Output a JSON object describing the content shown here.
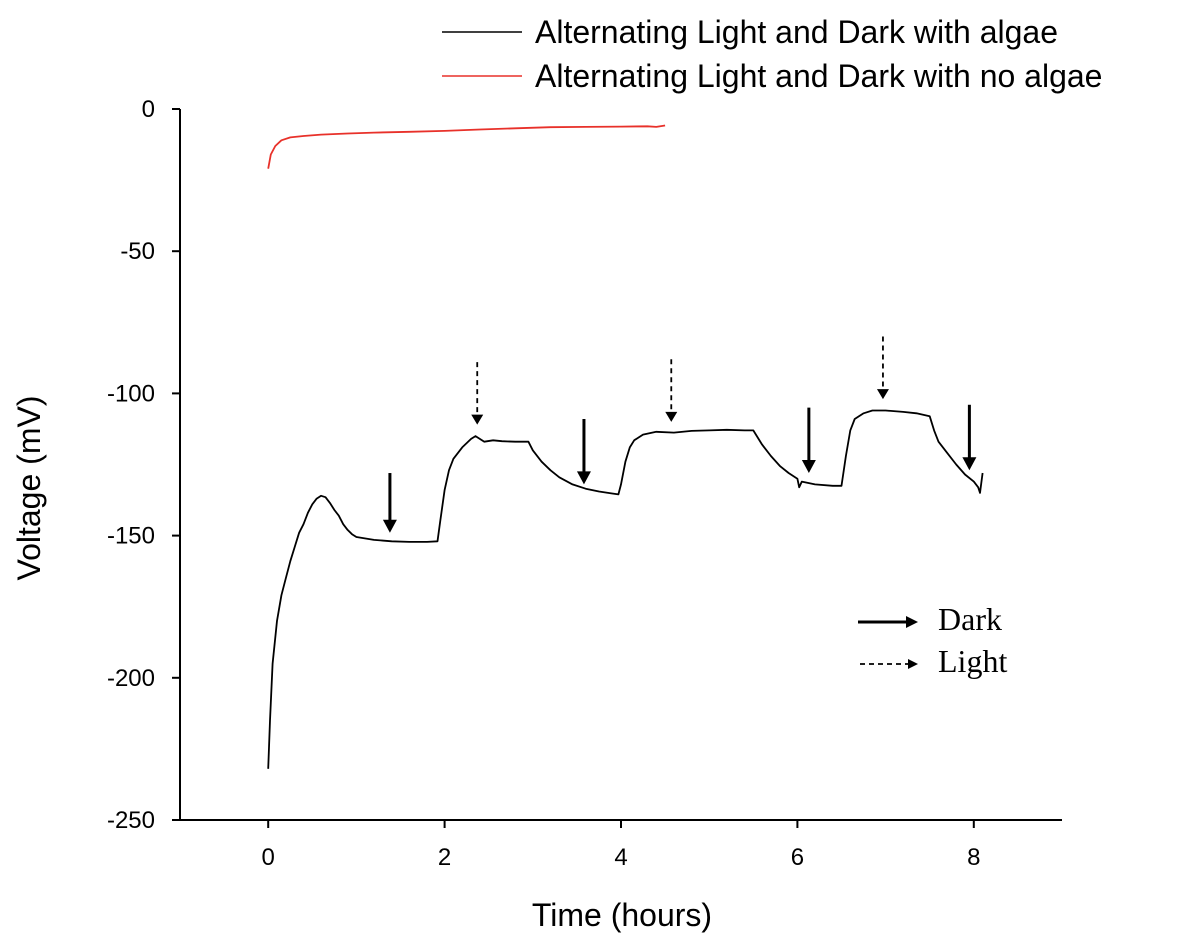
{
  "chart_data": {
    "type": "line",
    "xlabel": "Time (hours)",
    "ylabel": "Voltage (mV)",
    "xlim": [
      -1,
      9
    ],
    "ylim": [
      -250,
      0
    ],
    "xticks": [
      0,
      2,
      4,
      6,
      8
    ],
    "yticks": [
      0,
      -50,
      -100,
      -150,
      -200,
      -250
    ],
    "xtick_labels": [
      "0",
      "2",
      "4",
      "6",
      "8"
    ],
    "ytick_labels": [
      "0",
      "-50",
      "-100",
      "-150",
      "-200",
      "-250"
    ],
    "grid": false,
    "legend_position": "top-right",
    "series": [
      {
        "name": "Alternating Light and Dark with algae",
        "color": "#000000",
        "points": [
          [
            0.0,
            -232
          ],
          [
            0.02,
            -215
          ],
          [
            0.05,
            -195
          ],
          [
            0.1,
            -180
          ],
          [
            0.15,
            -171
          ],
          [
            0.2,
            -165
          ],
          [
            0.25,
            -159
          ],
          [
            0.3,
            -154
          ],
          [
            0.35,
            -149
          ],
          [
            0.4,
            -146
          ],
          [
            0.45,
            -142
          ],
          [
            0.5,
            -139
          ],
          [
            0.55,
            -137
          ],
          [
            0.6,
            -136
          ],
          [
            0.65,
            -136.5
          ],
          [
            0.7,
            -138.5
          ],
          [
            0.75,
            -141
          ],
          [
            0.8,
            -143
          ],
          [
            0.85,
            -146
          ],
          [
            0.9,
            -148
          ],
          [
            0.95,
            -149.5
          ],
          [
            1.0,
            -150.5
          ],
          [
            1.2,
            -151.5
          ],
          [
            1.4,
            -152
          ],
          [
            1.6,
            -152.2
          ],
          [
            1.8,
            -152.2
          ],
          [
            1.92,
            -152
          ],
          [
            1.95,
            -145
          ],
          [
            2.0,
            -134
          ],
          [
            2.05,
            -127
          ],
          [
            2.1,
            -123
          ],
          [
            2.2,
            -119
          ],
          [
            2.3,
            -116
          ],
          [
            2.35,
            -115
          ],
          [
            2.45,
            -117
          ],
          [
            2.55,
            -116.5
          ],
          [
            2.65,
            -116.8
          ],
          [
            2.8,
            -117
          ],
          [
            2.95,
            -117
          ],
          [
            3.0,
            -120
          ],
          [
            3.1,
            -124
          ],
          [
            3.2,
            -127
          ],
          [
            3.3,
            -129.5
          ],
          [
            3.45,
            -132
          ],
          [
            3.6,
            -133.5
          ],
          [
            3.75,
            -134.5
          ],
          [
            3.9,
            -135.2
          ],
          [
            3.97,
            -135.5
          ],
          [
            4.0,
            -132
          ],
          [
            4.05,
            -124
          ],
          [
            4.1,
            -119
          ],
          [
            4.15,
            -116.5
          ],
          [
            4.25,
            -114.5
          ],
          [
            4.4,
            -113.5
          ],
          [
            4.6,
            -113.8
          ],
          [
            4.8,
            -113.2
          ],
          [
            5.0,
            -113
          ],
          [
            5.2,
            -112.8
          ],
          [
            5.4,
            -113
          ],
          [
            5.5,
            -113
          ],
          [
            5.6,
            -118
          ],
          [
            5.7,
            -122
          ],
          [
            5.8,
            -125.5
          ],
          [
            5.9,
            -128
          ],
          [
            6.0,
            -130
          ],
          [
            6.02,
            -133
          ],
          [
            6.05,
            -131
          ],
          [
            6.2,
            -132
          ],
          [
            6.4,
            -132.5
          ],
          [
            6.5,
            -132.5
          ],
          [
            6.55,
            -122
          ],
          [
            6.6,
            -113
          ],
          [
            6.65,
            -109
          ],
          [
            6.75,
            -107
          ],
          [
            6.85,
            -106
          ],
          [
            7.0,
            -106
          ],
          [
            7.2,
            -106.5
          ],
          [
            7.35,
            -107
          ],
          [
            7.5,
            -108
          ],
          [
            7.55,
            -113
          ],
          [
            7.6,
            -117
          ],
          [
            7.7,
            -121
          ],
          [
            7.8,
            -125
          ],
          [
            7.9,
            -128.5
          ],
          [
            8.0,
            -131
          ],
          [
            8.05,
            -133
          ],
          [
            8.07,
            -135
          ],
          [
            8.1,
            -128
          ]
        ]
      },
      {
        "name": "Alternating Light and Dark with no algae",
        "color": "#e8312a",
        "points": [
          [
            0.0,
            -21
          ],
          [
            0.03,
            -16
          ],
          [
            0.08,
            -13
          ],
          [
            0.15,
            -11
          ],
          [
            0.25,
            -10
          ],
          [
            0.4,
            -9.5
          ],
          [
            0.6,
            -9
          ],
          [
            0.9,
            -8.6
          ],
          [
            1.2,
            -8.3
          ],
          [
            1.6,
            -8
          ],
          [
            2.0,
            -7.7
          ],
          [
            2.4,
            -7.2
          ],
          [
            2.8,
            -6.8
          ],
          [
            3.2,
            -6.4
          ],
          [
            3.6,
            -6.3
          ],
          [
            4.0,
            -6.2
          ],
          [
            4.3,
            -6.1
          ],
          [
            4.4,
            -6.3
          ],
          [
            4.5,
            -5.8
          ]
        ]
      }
    ],
    "annotations": {
      "dark_arrows": [
        {
          "x": 1.38,
          "y_top": -128,
          "y_bottom": -149
        },
        {
          "x": 3.58,
          "y_top": -109,
          "y_bottom": -132
        },
        {
          "x": 6.13,
          "y_top": -105,
          "y_bottom": -128
        },
        {
          "x": 7.95,
          "y_top": -104,
          "y_bottom": -127
        }
      ],
      "light_arrows": [
        {
          "x": 2.37,
          "y_top": -89,
          "y_bottom": -111
        },
        {
          "x": 4.57,
          "y_top": -88,
          "y_bottom": -110
        },
        {
          "x": 6.97,
          "y_top": -80,
          "y_bottom": -102
        }
      ],
      "marker_legend": {
        "dark_label": "Dark",
        "light_label": "Light"
      }
    }
  }
}
